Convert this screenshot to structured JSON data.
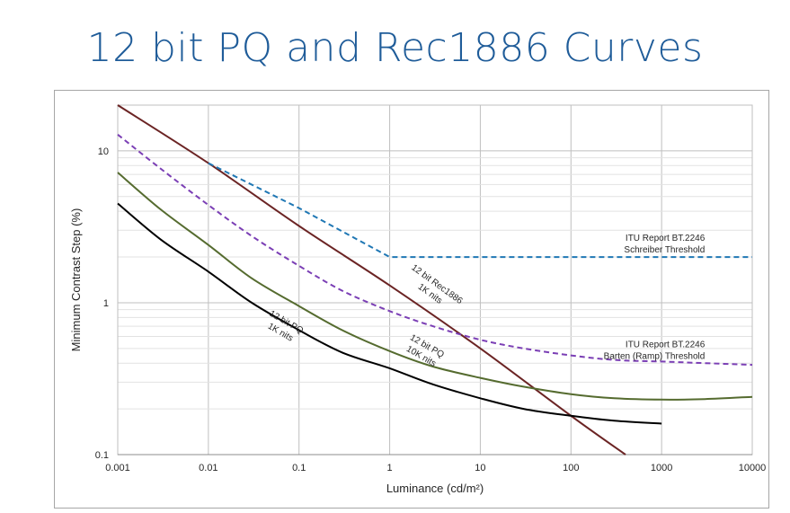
{
  "slide": {
    "title": "12 bit PQ and Rec1886 Curves"
  },
  "chart_data": {
    "type": "line",
    "title": "12 bit PQ and Rec1886 Curves",
    "xlabel": "Luminance (cd/m²)",
    "ylabel": "Minimum Contrast Step (%)",
    "xscale": "log",
    "yscale": "log",
    "xlim": [
      0.001,
      10000
    ],
    "ylim": [
      0.1,
      20
    ],
    "xticks": [
      0.001,
      0.01,
      0.1,
      1,
      10,
      100,
      1000,
      10000
    ],
    "xtick_labels": [
      "0.001",
      "0.01",
      "0.1",
      "1",
      "10",
      "100",
      "1000",
      "10000"
    ],
    "yticks": [
      0.1,
      1,
      10
    ],
    "ytick_labels": [
      "0.1",
      "1",
      "10"
    ],
    "grid": true,
    "legend": "none",
    "series": [
      {
        "name": "12 bit Rec1886 1K nits",
        "color": "#6b2424",
        "dash": "solid",
        "x": [
          0.001,
          0.01,
          0.1,
          1,
          10,
          100,
          400
        ],
        "y": [
          20,
          8.3,
          3.2,
          1.3,
          0.5,
          0.18,
          0.1
        ]
      },
      {
        "name": "ITU Report BT.2246 Schreiber Threshold",
        "color": "#1f77b4",
        "dash": "dashed",
        "x": [
          0.01,
          0.1,
          1,
          10,
          100,
          1000,
          10000
        ],
        "y": [
          8.3,
          4.2,
          2.0,
          2.0,
          2.0,
          2.0,
          2.0
        ]
      },
      {
        "name": "ITU Report BT.2246 Barten (Ramp) Threshold",
        "color": "#7b3fb5",
        "dash": "dashed",
        "x": [
          0.001,
          0.003,
          0.01,
          0.03,
          0.1,
          0.3,
          1,
          3,
          10,
          30,
          100,
          300,
          1000,
          3000,
          10000
        ],
        "y": [
          12.8,
          7.6,
          4.4,
          2.75,
          1.75,
          1.2,
          0.88,
          0.7,
          0.57,
          0.5,
          0.45,
          0.42,
          0.41,
          0.4,
          0.39
        ]
      },
      {
        "name": "12 bit PQ 10K nits",
        "color": "#556b2f",
        "dash": "solid",
        "x": [
          0.001,
          0.003,
          0.01,
          0.03,
          0.1,
          0.3,
          1,
          3,
          10,
          30,
          100,
          300,
          1000,
          3000,
          10000
        ],
        "y": [
          7.2,
          4.1,
          2.4,
          1.45,
          0.95,
          0.66,
          0.48,
          0.38,
          0.32,
          0.28,
          0.25,
          0.235,
          0.23,
          0.232,
          0.24
        ]
      },
      {
        "name": "12 bit PQ 1K nits",
        "color": "#000000",
        "dash": "solid",
        "x": [
          0.001,
          0.003,
          0.01,
          0.03,
          0.1,
          0.3,
          1,
          3,
          10,
          30,
          100,
          300,
          1000
        ],
        "y": [
          4.5,
          2.6,
          1.6,
          1.0,
          0.66,
          0.47,
          0.37,
          0.29,
          0.235,
          0.2,
          0.18,
          0.167,
          0.16
        ]
      }
    ],
    "annotations": [
      {
        "id": "rec1886",
        "lines": [
          "12 bit Rec1886",
          "1K nits"
        ],
        "at": [
          3.2,
          1.28
        ],
        "angle": 36
      },
      {
        "id": "pq10k",
        "lines": [
          "12 bit PQ",
          "10K nits"
        ],
        "at": [
          2.5,
          0.5
        ],
        "angle": 30
      },
      {
        "id": "pq1k",
        "lines": [
          "12 bit PQ",
          "1K nits"
        ],
        "at": [
          0.07,
          0.72
        ],
        "angle": 30
      },
      {
        "id": "schreiber",
        "lines": [
          "ITU Report BT.2246",
          "Schreiber Threshold"
        ],
        "at": [
          3000,
          2.55
        ],
        "angle": 0
      },
      {
        "id": "barten",
        "lines": [
          "ITU Report BT.2246",
          "Barten (Ramp) Threshold"
        ],
        "at": [
          3000,
          0.51
        ],
        "angle": 0
      }
    ]
  }
}
